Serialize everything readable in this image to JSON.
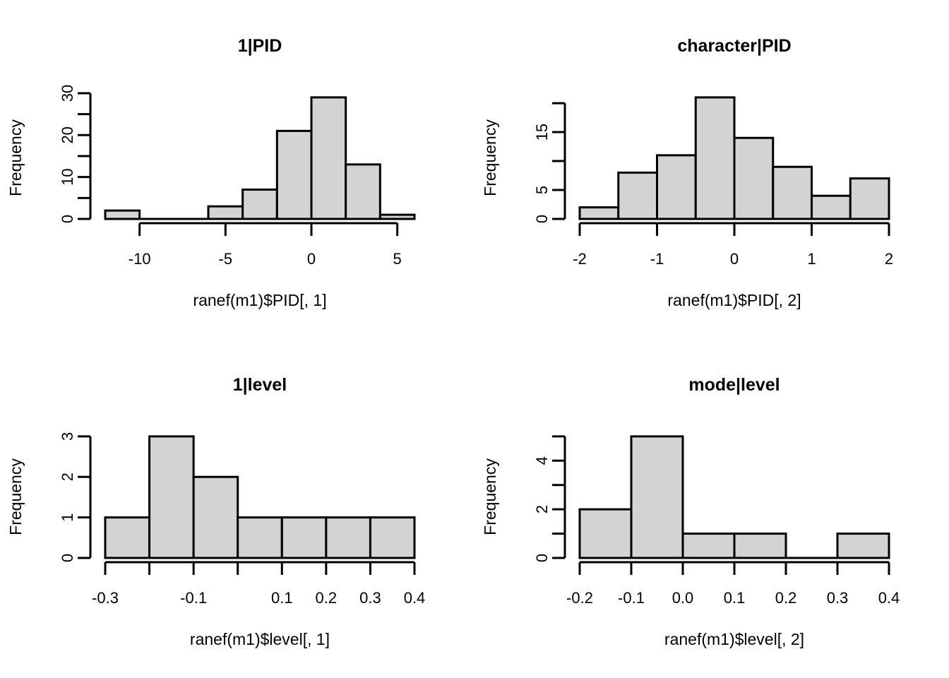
{
  "figure": {
    "background_color": "#ffffff",
    "bar_fill_color": "#d3d3d3",
    "line_color": "#000000"
  },
  "chart_data": [
    {
      "type": "bar",
      "subtype": "histogram",
      "title": "1|PID",
      "xlabel": "ranef(m1)$PID[, 1]",
      "ylabel": "Frequency",
      "breaks": [
        -12,
        -10,
        -8,
        -6,
        -4,
        -2,
        0,
        2,
        4,
        6
      ],
      "counts": [
        2,
        0,
        0,
        3,
        7,
        21,
        29,
        13,
        1
      ],
      "xlim": [
        -12,
        6
      ],
      "ylim": [
        0,
        29
      ],
      "grid": false,
      "legend": "none",
      "x_ticks": [
        {
          "v": -10,
          "label": "-10"
        },
        {
          "v": -5,
          "label": "-5"
        },
        {
          "v": 0,
          "label": "0"
        },
        {
          "v": 5,
          "label": "5"
        }
      ],
      "y_ticks": [
        {
          "v": 0,
          "label": "0"
        },
        {
          "v": 5,
          "label": ""
        },
        {
          "v": 10,
          "label": "10"
        },
        {
          "v": 15,
          "label": ""
        },
        {
          "v": 20,
          "label": "20"
        },
        {
          "v": 25,
          "label": ""
        },
        {
          "v": 30,
          "label": "30"
        }
      ]
    },
    {
      "type": "bar",
      "subtype": "histogram",
      "title": "character|PID",
      "xlabel": "ranef(m1)$PID[, 2]",
      "ylabel": "Frequency",
      "breaks": [
        -2,
        -1.5,
        -1,
        -0.5,
        0,
        0.5,
        1,
        1.5,
        2
      ],
      "counts": [
        2,
        8,
        11,
        21,
        14,
        9,
        4,
        7
      ],
      "xlim": [
        -2,
        2
      ],
      "ylim": [
        0,
        21
      ],
      "grid": false,
      "legend": "none",
      "x_ticks": [
        {
          "v": -2,
          "label": "-2"
        },
        {
          "v": -1,
          "label": "-1"
        },
        {
          "v": 0,
          "label": "0"
        },
        {
          "v": 1,
          "label": "1"
        },
        {
          "v": 2,
          "label": "2"
        }
      ],
      "y_ticks": [
        {
          "v": 0,
          "label": "0"
        },
        {
          "v": 5,
          "label": "5"
        },
        {
          "v": 10,
          "label": ""
        },
        {
          "v": 15,
          "label": "15"
        },
        {
          "v": 20,
          "label": ""
        }
      ]
    },
    {
      "type": "bar",
      "subtype": "histogram",
      "title": "1|level",
      "xlabel": "ranef(m1)$level[, 1]",
      "ylabel": "Frequency",
      "breaks": [
        -0.3,
        -0.2,
        -0.1,
        0,
        0.1,
        0.2,
        0.3,
        0.4
      ],
      "counts": [
        1,
        3,
        2,
        1,
        1,
        1,
        1
      ],
      "xlim": [
        -0.3,
        0.4
      ],
      "ylim": [
        0,
        3
      ],
      "grid": false,
      "legend": "none",
      "x_ticks": [
        {
          "v": -0.3,
          "label": "-0.3"
        },
        {
          "v": -0.2,
          "label": ""
        },
        {
          "v": -0.1,
          "label": "-0.1"
        },
        {
          "v": 0,
          "label": ""
        },
        {
          "v": 0.1,
          "label": "0.1"
        },
        {
          "v": 0.2,
          "label": "0.2"
        },
        {
          "v": 0.3,
          "label": "0.3"
        },
        {
          "v": 0.4,
          "label": "0.4"
        }
      ],
      "y_ticks": [
        {
          "v": 0,
          "label": "0"
        },
        {
          "v": 1,
          "label": "1"
        },
        {
          "v": 2,
          "label": "2"
        },
        {
          "v": 3,
          "label": "3"
        }
      ]
    },
    {
      "type": "bar",
      "subtype": "histogram",
      "title": "mode|level",
      "xlabel": "ranef(m1)$level[, 2]",
      "ylabel": "Frequency",
      "breaks": [
        -0.2,
        -0.1,
        0,
        0.1,
        0.2,
        0.3,
        0.4
      ],
      "counts": [
        2,
        5,
        1,
        1,
        0,
        1
      ],
      "xlim": [
        -0.2,
        0.4
      ],
      "ylim": [
        0,
        5
      ],
      "grid": false,
      "legend": "none",
      "x_ticks": [
        {
          "v": -0.2,
          "label": "-0.2"
        },
        {
          "v": -0.1,
          "label": "-0.1"
        },
        {
          "v": 0,
          "label": "0.0"
        },
        {
          "v": 0.1,
          "label": "0.1"
        },
        {
          "v": 0.2,
          "label": "0.2"
        },
        {
          "v": 0.3,
          "label": "0.3"
        },
        {
          "v": 0.4,
          "label": "0.4"
        }
      ],
      "y_ticks": [
        {
          "v": 0,
          "label": "0"
        },
        {
          "v": 1,
          "label": ""
        },
        {
          "v": 2,
          "label": "2"
        },
        {
          "v": 3,
          "label": ""
        },
        {
          "v": 4,
          "label": "4"
        },
        {
          "v": 5,
          "label": ""
        }
      ]
    }
  ]
}
